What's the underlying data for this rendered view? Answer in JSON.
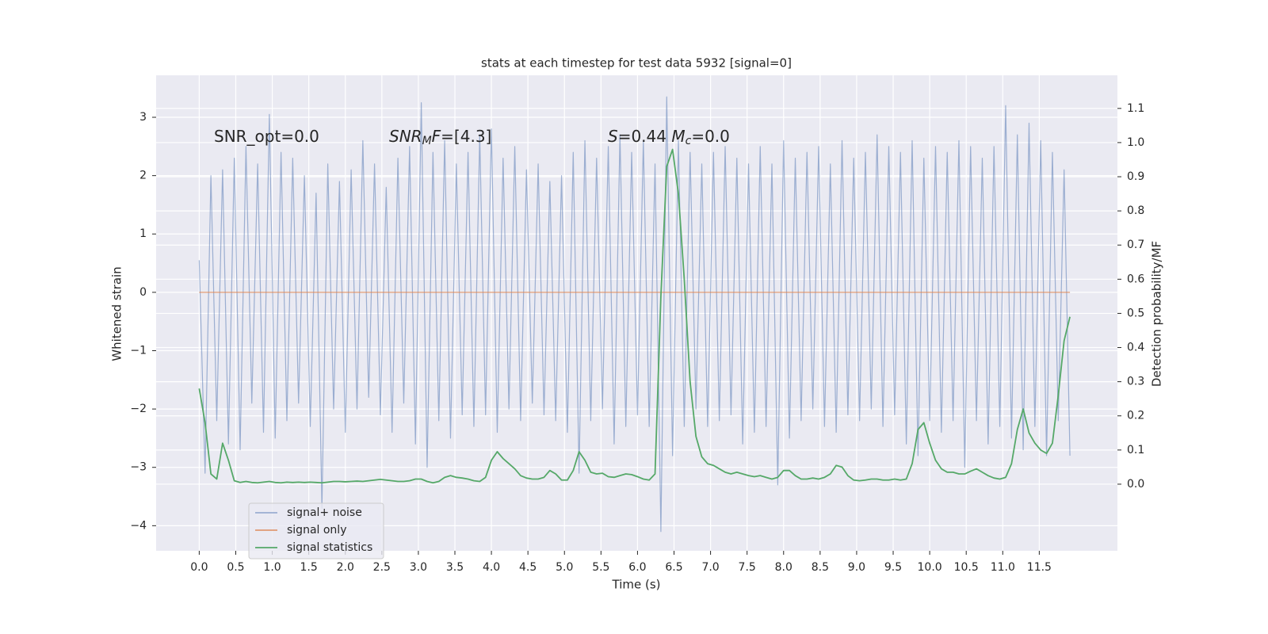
{
  "chart_data": {
    "type": "line",
    "title": "stats at each timestep for test data 5932 [signal=0]",
    "x_label": "Time (s)",
    "y_label": "Whitened strain",
    "y2_label": "Detection probability/MF",
    "annotations": [
      [
        {
          "text": "SNR_opt=0.0"
        }
      ],
      [
        {
          "text": "SNR",
          "italic": true
        },
        {
          "text": "M",
          "italic": true,
          "sub": true
        },
        {
          "text": "F",
          "italic": true
        },
        {
          "text": "=[4.3]"
        }
      ],
      [
        {
          "text": "S",
          "italic": true
        },
        {
          "text": "=0.44   "
        },
        {
          "text": "M",
          "italic": true
        },
        {
          "text": "c",
          "italic": true,
          "sub": true
        },
        {
          "text": "=0.0"
        }
      ]
    ],
    "xlim": [
      -0.59,
      12.57
    ],
    "ylim": [
      -4.43,
      3.72
    ],
    "y2lim": [
      -0.195,
      1.197
    ],
    "xticks": [
      {
        "value": 0,
        "label": "0.0"
      },
      0.5,
      {
        "value": 1,
        "label": "1.0"
      },
      1.5,
      {
        "value": 2,
        "label": "2.0"
      },
      2.5,
      {
        "value": 3,
        "label": "3.0"
      },
      3.5,
      {
        "value": 4,
        "label": "4.0"
      },
      4.5,
      {
        "value": 5,
        "label": "5.0"
      },
      5.5,
      {
        "value": 6,
        "label": "6.0"
      },
      6.5,
      {
        "value": 7,
        "label": "7.0"
      },
      7.5,
      {
        "value": 8,
        "label": "8.0"
      },
      8.5,
      {
        "value": 9,
        "label": "9.0"
      },
      9.5,
      {
        "value": 10,
        "label": "10.0"
      },
      10.5,
      {
        "value": 11,
        "label": "11.0"
      },
      11.5
    ],
    "yticks": [
      {
        "value": -4,
        "label": "−4"
      },
      {
        "value": -3,
        "label": "−3"
      },
      {
        "value": -2,
        "label": "−2"
      },
      {
        "value": -1,
        "label": "−1"
      },
      0,
      1,
      2,
      3
    ],
    "y2ticks": [
      {
        "value": 0,
        "label": "0.0"
      },
      0.1,
      0.2,
      0.3,
      0.4,
      0.5,
      0.6,
      0.7,
      0.8,
      0.9,
      {
        "value": 1,
        "label": "1.0"
      },
      1.1
    ],
    "grid": true,
    "legend": "lower left",
    "x": [
      0,
      0.08,
      0.16,
      0.24,
      0.32,
      0.4,
      0.48,
      0.56,
      0.64,
      0.72,
      0.8,
      0.88,
      0.96,
      1.04,
      1.12,
      1.2,
      1.28,
      1.36,
      1.44,
      1.52,
      1.6,
      1.68,
      1.76,
      1.84,
      1.92,
      2,
      2.08,
      2.16,
      2.24,
      2.32,
      2.4,
      2.48,
      2.56,
      2.64,
      2.72,
      2.8,
      2.88,
      2.96,
      3.04,
      3.12,
      3.2,
      3.28,
      3.36,
      3.44,
      3.52,
      3.6,
      3.68,
      3.76,
      3.84,
      3.92,
      4,
      4.08,
      4.16,
      4.24,
      4.32,
      4.4,
      4.48,
      4.56,
      4.64,
      4.72,
      4.8,
      4.88,
      4.96,
      5.04,
      5.12,
      5.2,
      5.28,
      5.36,
      5.44,
      5.52,
      5.6,
      5.68,
      5.76,
      5.84,
      5.92,
      6,
      6.08,
      6.16,
      6.24,
      6.32,
      6.4,
      6.48,
      6.56,
      6.64,
      6.72,
      6.8,
      6.88,
      6.96,
      7.04,
      7.12,
      7.2,
      7.28,
      7.36,
      7.44,
      7.52,
      7.6,
      7.68,
      7.76,
      7.84,
      7.92,
      8,
      8.08,
      8.16,
      8.24,
      8.32,
      8.4,
      8.48,
      8.56,
      8.64,
      8.72,
      8.8,
      8.88,
      8.96,
      9.04,
      9.12,
      9.2,
      9.28,
      9.36,
      9.44,
      9.52,
      9.6,
      9.68,
      9.76,
      9.84,
      9.92,
      10,
      10.08,
      10.16,
      10.24,
      10.32,
      10.4,
      10.48,
      10.56,
      10.64,
      10.72,
      10.8,
      10.88,
      10.96,
      11.04,
      11.12,
      11.2,
      11.28,
      11.36,
      11.44,
      11.52,
      11.6,
      11.68,
      11.76,
      11.84,
      11.92
    ],
    "series": [
      {
        "name": "signal+ noise",
        "color": "#4c72b0",
        "alpha": 0.5,
        "axis": "y",
        "values": [
          0.55,
          -3.1,
          2.0,
          -2.2,
          2.1,
          -2.6,
          2.3,
          -2.7,
          2.5,
          -1.9,
          2.2,
          -2.4,
          3.05,
          -2.5,
          2.4,
          -2.2,
          2.3,
          -1.9,
          2.0,
          -2.3,
          1.7,
          -3.7,
          2.2,
          -2.0,
          1.9,
          -2.4,
          2.1,
          -2.0,
          2.6,
          -1.8,
          2.2,
          -2.1,
          1.8,
          -2.4,
          2.3,
          -1.9,
          2.5,
          -2.6,
          3.25,
          -3.0,
          2.4,
          -2.2,
          2.6,
          -2.5,
          2.2,
          -2.1,
          2.4,
          -2.3,
          2.7,
          -2.1,
          2.8,
          -2.4,
          2.3,
          -2.0,
          2.5,
          -2.2,
          2.1,
          -1.9,
          2.2,
          -2.1,
          1.9,
          -2.2,
          2.0,
          -2.4,
          2.4,
          -3.1,
          2.6,
          -2.2,
          2.3,
          -2.0,
          2.5,
          -2.6,
          2.7,
          -2.3,
          2.4,
          -2.1,
          2.6,
          -2.3,
          2.2,
          -4.1,
          3.35,
          -2.8,
          2.6,
          -2.3,
          2.4,
          -2.0,
          2.2,
          -2.3,
          2.4,
          -2.2,
          2.5,
          -2.1,
          2.3,
          -2.6,
          2.2,
          -2.4,
          2.5,
          -2.3,
          2.2,
          -3.3,
          2.6,
          -2.5,
          2.3,
          -2.2,
          2.4,
          -2.0,
          2.5,
          -2.3,
          2.2,
          -2.4,
          2.6,
          -2.1,
          2.3,
          -2.2,
          2.4,
          -2.0,
          2.7,
          -2.3,
          2.5,
          -2.1,
          2.4,
          -2.6,
          2.6,
          -2.8,
          2.3,
          -2.2,
          2.5,
          -2.4,
          2.4,
          -2.2,
          2.6,
          -3.0,
          2.5,
          -2.2,
          2.3,
          -2.6,
          2.5,
          -2.3,
          3.2,
          -2.5,
          2.7,
          -2.7,
          2.9,
          -2.3,
          2.6,
          -2.8,
          2.4,
          -2.2,
          2.1,
          -2.8
        ]
      },
      {
        "name": "signal only",
        "color": "#dd8452",
        "alpha": 0.8,
        "axis": "y",
        "values": [
          0,
          0,
          0,
          0,
          0,
          0,
          0,
          0,
          0,
          0,
          0,
          0,
          0,
          0,
          0,
          0,
          0,
          0,
          0,
          0,
          0,
          0,
          0,
          0,
          0,
          0,
          0,
          0,
          0,
          0,
          0,
          0,
          0,
          0,
          0,
          0,
          0,
          0,
          0,
          0,
          0,
          0,
          0,
          0,
          0,
          0,
          0,
          0,
          0,
          0,
          0,
          0,
          0,
          0,
          0,
          0,
          0,
          0,
          0,
          0,
          0,
          0,
          0,
          0,
          0,
          0,
          0,
          0,
          0,
          0,
          0,
          0,
          0,
          0,
          0,
          0,
          0,
          0,
          0,
          0,
          0,
          0,
          0,
          0,
          0,
          0,
          0,
          0,
          0,
          0,
          0,
          0,
          0,
          0,
          0,
          0,
          0,
          0,
          0,
          0,
          0,
          0,
          0,
          0,
          0,
          0,
          0,
          0,
          0,
          0,
          0,
          0,
          0,
          0,
          0,
          0,
          0,
          0,
          0,
          0,
          0,
          0,
          0,
          0,
          0,
          0,
          0,
          0,
          0,
          0,
          0,
          0,
          0,
          0,
          0,
          0,
          0,
          0,
          0,
          0,
          0,
          0,
          0,
          0,
          0,
          0,
          0,
          0,
          0,
          0
        ]
      },
      {
        "name": "signal statistics",
        "color": "#55a868",
        "alpha": 1,
        "axis": "y2",
        "values": [
          0.28,
          0.18,
          0.03,
          0.015,
          0.12,
          0.07,
          0.01,
          0.005,
          0.008,
          0.005,
          0.004,
          0.006,
          0.008,
          0.005,
          0.004,
          0.006,
          0.005,
          0.006,
          0.005,
          0.006,
          0.005,
          0.004,
          0.006,
          0.008,
          0.008,
          0.007,
          0.008,
          0.009,
          0.008,
          0.01,
          0.012,
          0.014,
          0.012,
          0.01,
          0.008,
          0.008,
          0.01,
          0.015,
          0.015,
          0.008,
          0.004,
          0.008,
          0.02,
          0.025,
          0.02,
          0.018,
          0.015,
          0.01,
          0.008,
          0.02,
          0.07,
          0.095,
          0.075,
          0.06,
          0.045,
          0.025,
          0.018,
          0.015,
          0.015,
          0.02,
          0.04,
          0.03,
          0.012,
          0.012,
          0.04,
          0.095,
          0.07,
          0.035,
          0.03,
          0.032,
          0.022,
          0.02,
          0.025,
          0.03,
          0.028,
          0.022,
          0.015,
          0.012,
          0.03,
          0.55,
          0.93,
          0.98,
          0.85,
          0.6,
          0.3,
          0.14,
          0.08,
          0.06,
          0.055,
          0.045,
          0.035,
          0.03,
          0.035,
          0.03,
          0.025,
          0.022,
          0.025,
          0.02,
          0.015,
          0.02,
          0.04,
          0.04,
          0.025,
          0.015,
          0.015,
          0.018,
          0.015,
          0.02,
          0.03,
          0.055,
          0.05,
          0.025,
          0.012,
          0.01,
          0.012,
          0.015,
          0.015,
          0.012,
          0.012,
          0.015,
          0.012,
          0.015,
          0.06,
          0.16,
          0.18,
          0.12,
          0.07,
          0.045,
          0.035,
          0.035,
          0.03,
          0.03,
          0.038,
          0.045,
          0.035,
          0.025,
          0.018,
          0.015,
          0.02,
          0.06,
          0.16,
          0.22,
          0.15,
          0.12,
          0.1,
          0.09,
          0.12,
          0.26,
          0.42,
          0.49
        ]
      }
    ]
  }
}
